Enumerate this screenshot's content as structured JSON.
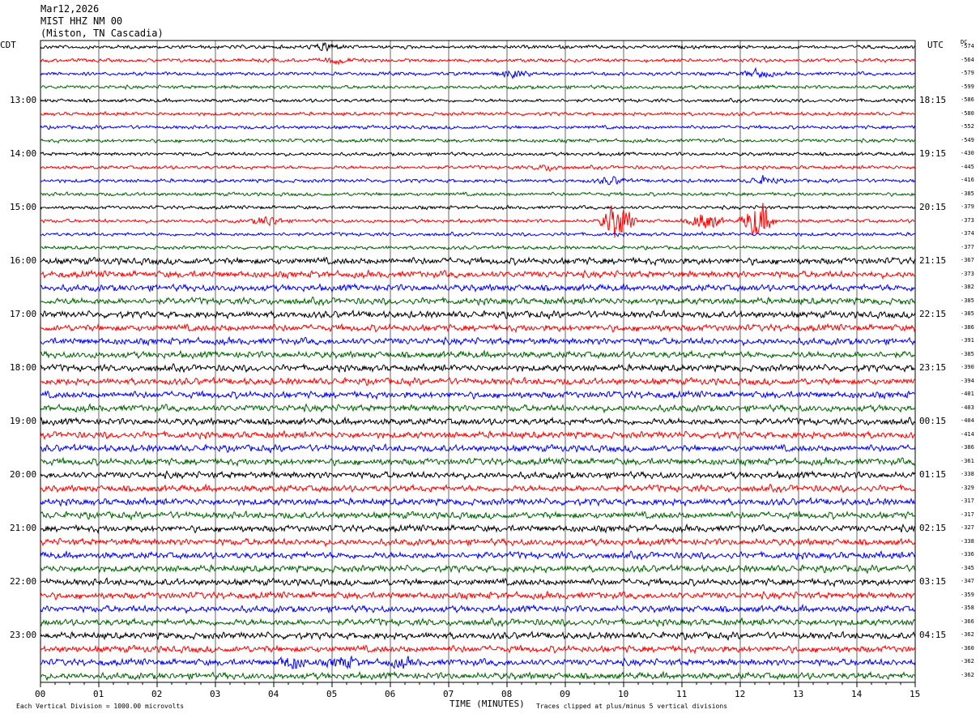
{
  "header": {
    "date": "Mar12,2026",
    "station": "MIST HHZ NM 00",
    "location": "(Miston, TN Cascadia)"
  },
  "left_tz": "CDT",
  "right_tz": "UTC",
  "dc_label": "DC",
  "footer": {
    "scale_note": "Each Vertical Division = 1000.00 microvolts",
    "xlabel": "TIME (MINUTES)",
    "clip_note": "Traces clipped at plus/minus 5 vertical divisions"
  },
  "colors": {
    "c0": "#000000",
    "c1": "#ff0000",
    "c2": "#0000ff",
    "c3": "#006400"
  },
  "chart_data": {
    "type": "line",
    "xlabel": "TIME (MINUTES)",
    "x_ticks": [
      "00",
      "01",
      "02",
      "03",
      "04",
      "05",
      "06",
      "07",
      "08",
      "09",
      "10",
      "11",
      "12",
      "13",
      "14",
      "15"
    ],
    "xlim": [
      0,
      15
    ],
    "grid": true,
    "left_labels": [
      "13:00",
      "14:00",
      "15:00",
      "16:00",
      "17:00",
      "18:00",
      "19:00",
      "20:00",
      "21:00",
      "22:00",
      "23:00"
    ],
    "right_labels": [
      "18:15",
      "19:15",
      "20:15",
      "21:15",
      "22:15",
      "23:15",
      "00:15",
      "01:15",
      "02:15",
      "03:15",
      "04:15"
    ],
    "dc_offsets": [
      -574,
      -564,
      -579,
      -599,
      -586,
      -580,
      -552,
      -549,
      -430,
      -445,
      -416,
      -385,
      -379,
      -373,
      -374,
      -377,
      -367,
      -373,
      -382,
      -385,
      -385,
      -386,
      -391,
      -385,
      -390,
      -394,
      -401,
      -403,
      -404,
      -414,
      -386,
      -361,
      -338,
      -329,
      -317,
      -317,
      -327,
      -338,
      -336,
      -345,
      -347,
      -359,
      -358,
      -366,
      -362,
      -360,
      -362,
      -362
    ],
    "trace_colors": [
      "#000000",
      "#ff0000",
      "#0000ff",
      "#006400"
    ],
    "events": [
      {
        "trace": 0,
        "minute": 4.9,
        "amplitude": 1.0
      },
      {
        "trace": 1,
        "minute": 5.1,
        "amplitude": 0.7
      },
      {
        "trace": 2,
        "minute": 8.1,
        "amplitude": 0.9
      },
      {
        "trace": 2,
        "minute": 12.3,
        "amplitude": 1.0
      },
      {
        "trace": 9,
        "minute": 8.7,
        "amplitude": 0.6
      },
      {
        "trace": 10,
        "minute": 9.8,
        "amplitude": 0.8
      },
      {
        "trace": 10,
        "minute": 12.4,
        "amplitude": 0.9
      },
      {
        "trace": 13,
        "minute": 3.9,
        "amplitude": 1.2
      },
      {
        "trace": 13,
        "minute": 9.9,
        "amplitude": 5.0
      },
      {
        "trace": 13,
        "minute": 11.4,
        "amplitude": 2.5
      },
      {
        "trace": 13,
        "minute": 12.3,
        "amplitude": 5.0
      },
      {
        "trace": 46,
        "minute": 4.3,
        "amplitude": 1.4
      },
      {
        "trace": 46,
        "minute": 5.2,
        "amplitude": 1.2
      },
      {
        "trace": 46,
        "minute": 6.2,
        "amplitude": 0.8
      }
    ]
  }
}
